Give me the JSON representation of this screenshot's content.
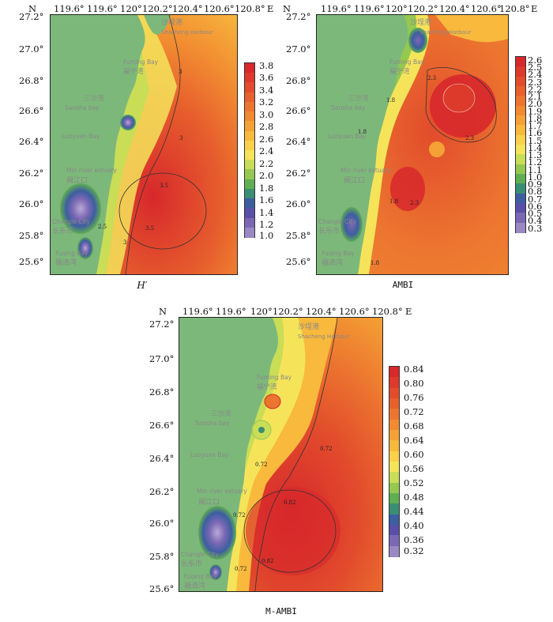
{
  "panels": [
    {
      "id": "H",
      "caption": "H′",
      "lat_axis_label": "N",
      "lon_axis_label": "E",
      "lon_ticks": [
        "119.6°",
        "119.6°",
        "120°",
        "120.2°",
        "120.4°",
        "120.6°",
        "120.8°"
      ],
      "lat_ticks": [
        "27.2°",
        "27.0°",
        "26.8°",
        "26.6°",
        "26.4°",
        "26.2°",
        "26.0°",
        "25.8°",
        "25.6°"
      ],
      "colorbar": {
        "labels": [
          "3.8",
          "3.6",
          "3.4",
          "3.2",
          "3.0",
          "2.8",
          "2.6",
          "2.4",
          "2.2",
          "2.0",
          "1.8",
          "1.6",
          "1.4",
          "1.2",
          "1.0"
        ],
        "colors": [
          "#d7282c",
          "#dd3a2b",
          "#e24c2c",
          "#e7602d",
          "#ec752f",
          "#f18a31",
          "#f4a135",
          "#f8b93d",
          "#fbd04b",
          "#f5e45a",
          "#c9dd57",
          "#95c850",
          "#60ae53",
          "#3a8e73",
          "#3d5ea0",
          "#5a4fa8",
          "#7b68b4",
          "#9a88c4"
        ]
      },
      "contour_labels": [
        "3",
        "3",
        "3",
        "3.5",
        "3.5",
        "2.5"
      ]
    },
    {
      "id": "AMBI",
      "caption": "AMBI",
      "lat_axis_label": "N",
      "lon_axis_label": "E",
      "lon_ticks": [
        "119.6°",
        "119.6°",
        "120°",
        "120.2°",
        "120.4°",
        "120.6°",
        "120.8°"
      ],
      "lat_ticks": [
        "27.2°",
        "27.0°",
        "26.8°",
        "26.6°",
        "26.4°",
        "26.2°",
        "26.0°",
        "25.8°",
        "25.6°"
      ],
      "colorbar": {
        "labels": [
          "2.6",
          "2.5",
          "2.4",
          "2.3",
          "2.2",
          "2.1",
          "2.0",
          "1.9",
          "1.8",
          "1.7",
          "1.6",
          "1.5",
          "1.4",
          "1.3",
          "1.2",
          "1.1",
          "1.0",
          "0.9",
          "0.8",
          "0.7",
          "0.6",
          "0.5",
          "0.4",
          "0.3"
        ],
        "colors": [
          "#d7282c",
          "#dd3a2b",
          "#e24c2c",
          "#e7602d",
          "#ec752f",
          "#f18a31",
          "#f4a135",
          "#f8b93d",
          "#fbd04b",
          "#f5e45a",
          "#c9dd57",
          "#95c850",
          "#60ae53",
          "#3a8e73",
          "#3d5ea0",
          "#5a4fa8",
          "#7b68b4",
          "#9a88c4"
        ]
      },
      "contour_labels": [
        "2.3",
        "2.3",
        "1.8",
        "1.8",
        "1.8",
        "2.3",
        "1.8"
      ]
    },
    {
      "id": "MAMBI",
      "caption": "M-AMBI",
      "lat_axis_label": "N",
      "lon_axis_label": "E",
      "lon_ticks": [
        "119.6°",
        "119.6°",
        "120°",
        "120.2°",
        "120.4°",
        "120.6°",
        "120.8°"
      ],
      "lat_ticks": [
        "27.2°",
        "27.0°",
        "26.8°",
        "26.6°",
        "26.4°",
        "26.2°",
        "26.0°",
        "25.8°",
        "25.6°"
      ],
      "colorbar": {
        "labels": [
          "0.84",
          "0.80",
          "0.76",
          "0.72",
          "0.68",
          "0.64",
          "0.60",
          "0.56",
          "0.52",
          "0.48",
          "0.44",
          "0.40",
          "0.36",
          "0.32"
        ],
        "colors": [
          "#d7282c",
          "#dd3a2b",
          "#e24c2c",
          "#e7602d",
          "#ec752f",
          "#f18a31",
          "#f4a135",
          "#f8b93d",
          "#fbd04b",
          "#f5e45a",
          "#c9dd57",
          "#95c850",
          "#60ae53",
          "#3a8e73",
          "#3d5ea0",
          "#5a4fa8",
          "#7b68b4",
          "#9a88c4"
        ]
      },
      "contour_labels": [
        "0.72",
        "0.72",
        "0.82",
        "0.82",
        "0.72",
        "0.72"
      ]
    }
  ],
  "place_labels": {
    "shacheng_cn": "沙埕港",
    "shacheng_en": "Shacheng Harbour",
    "fuming_en": "Fuming Bay",
    "fuming_cn": "福宁湾",
    "sansha_cn": "三沙湾",
    "sansha_en": "Sansha bay",
    "luoyuan_en": "Luoyuan Bay",
    "minriver_en": "Min river estuary",
    "minriver_cn": "闽江口",
    "changle_en": "Changle City",
    "changle_cn": "长乐市",
    "fuqing_en": "Fuqing Bay",
    "fuqing_cn": "福清湾"
  },
  "colors": {
    "land": "#7cb87a",
    "land_edge": "#5d9c5b",
    "sea_high": "#d7282c",
    "sea_mid": "#f18a31",
    "sea_low": "#f5e45a",
    "contour": "#333333",
    "contour_light": "#f3d2b9"
  }
}
